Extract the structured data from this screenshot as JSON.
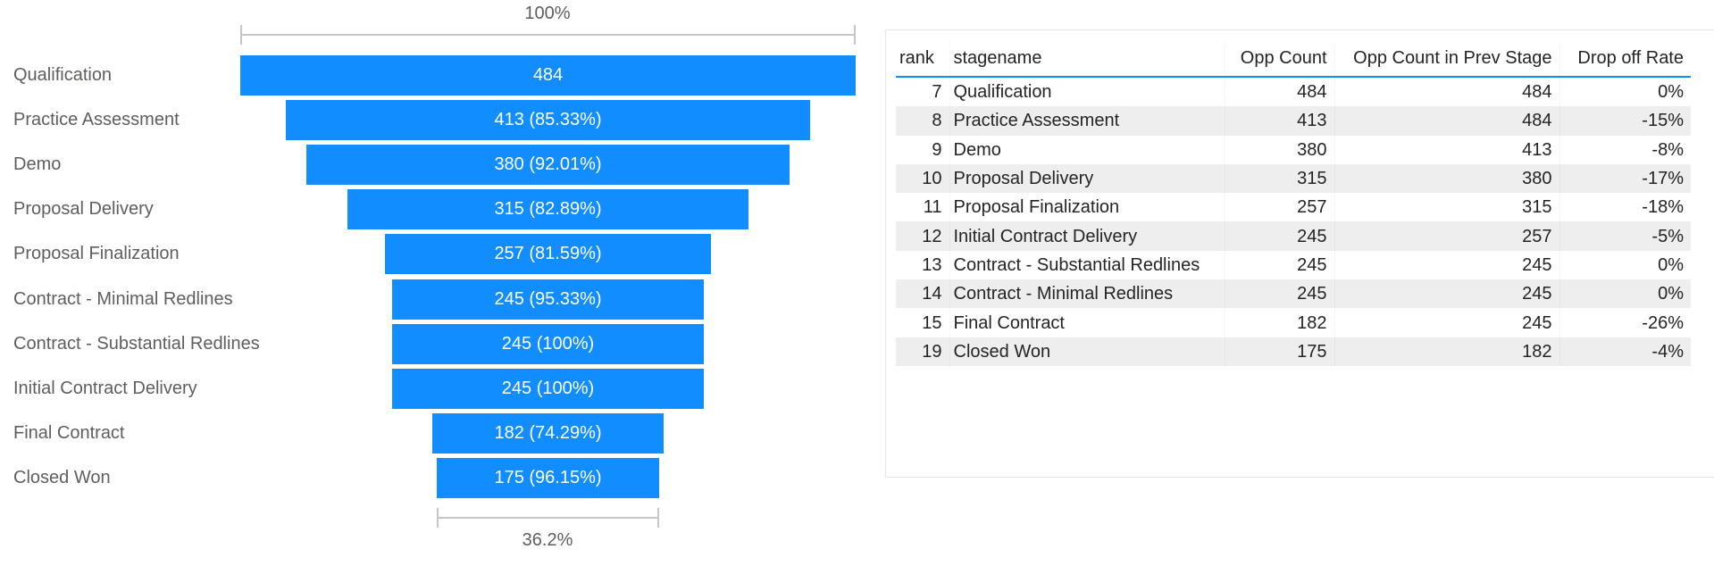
{
  "funnel": {
    "top_axis_label": "100%",
    "bottom_axis_label": "36.2%",
    "bar_color": "#118DFF",
    "stages": [
      {
        "label": "Qualification",
        "value": 484,
        "bar_text": "484"
      },
      {
        "label": "Practice Assessment",
        "value": 413,
        "bar_text": "413 (85.33%)"
      },
      {
        "label": "Demo",
        "value": 380,
        "bar_text": "380 (92.01%)"
      },
      {
        "label": "Proposal Delivery",
        "value": 315,
        "bar_text": "315 (82.89%)"
      },
      {
        "label": "Proposal Finalization",
        "value": 257,
        "bar_text": "257 (81.59%)"
      },
      {
        "label": "Contract - Minimal Redlines",
        "value": 245,
        "bar_text": "245 (95.33%)"
      },
      {
        "label": "Contract - Substantial Redlines",
        "value": 245,
        "bar_text": "245 (100%)"
      },
      {
        "label": "Initial Contract Delivery",
        "value": 245,
        "bar_text": "245 (100%)"
      },
      {
        "label": "Final Contract",
        "value": 182,
        "bar_text": "182 (74.29%)"
      },
      {
        "label": "Closed Won",
        "value": 175,
        "bar_text": "175 (96.15%)"
      }
    ]
  },
  "table": {
    "headers": [
      "rank",
      "stagename",
      "Opp Count",
      "Opp Count in Prev Stage",
      "Drop off Rate"
    ],
    "rows": [
      [
        "7",
        "Qualification",
        "484",
        "484",
        "0%"
      ],
      [
        "8",
        "Practice Assessment",
        "413",
        "484",
        "-15%"
      ],
      [
        "9",
        "Demo",
        "380",
        "413",
        "-8%"
      ],
      [
        "10",
        "Proposal Delivery",
        "315",
        "380",
        "-17%"
      ],
      [
        "11",
        "Proposal Finalization",
        "257",
        "315",
        "-18%"
      ],
      [
        "12",
        "Initial Contract Delivery",
        "245",
        "257",
        "-5%"
      ],
      [
        "13",
        "Contract - Substantial Redlines",
        "245",
        "245",
        "0%"
      ],
      [
        "14",
        "Contract - Minimal Redlines",
        "245",
        "245",
        "0%"
      ],
      [
        "15",
        "Final Contract",
        "182",
        "245",
        "-26%"
      ],
      [
        "19",
        "Closed Won",
        "175",
        "182",
        "-4%"
      ]
    ]
  },
  "chart_data": [
    {
      "type": "bar",
      "subtype": "funnel",
      "title": "",
      "categories": [
        "Qualification",
        "Practice Assessment",
        "Demo",
        "Proposal Delivery",
        "Proposal Finalization",
        "Contract - Minimal Redlines",
        "Contract - Substantial Redlines",
        "Initial Contract Delivery",
        "Final Contract",
        "Closed Won"
      ],
      "values": [
        484,
        413,
        380,
        315,
        257,
        245,
        245,
        245,
        182,
        175
      ],
      "pct_of_previous": [
        null,
        85.33,
        92.01,
        82.89,
        81.59,
        95.33,
        100,
        100,
        74.29,
        96.15
      ],
      "annotations": {
        "top": "100%",
        "bottom": "36.2%"
      },
      "xlabel": "",
      "ylabel": ""
    },
    {
      "type": "table",
      "columns": [
        "rank",
        "stagename",
        "Opp Count",
        "Opp Count in Prev Stage",
        "Drop off Rate"
      ],
      "rows": [
        [
          7,
          "Qualification",
          484,
          484,
          "0%"
        ],
        [
          8,
          "Practice Assessment",
          413,
          484,
          "-15%"
        ],
        [
          9,
          "Demo",
          380,
          413,
          "-8%"
        ],
        [
          10,
          "Proposal Delivery",
          315,
          380,
          "-17%"
        ],
        [
          11,
          "Proposal Finalization",
          257,
          315,
          "-18%"
        ],
        [
          12,
          "Initial Contract Delivery",
          245,
          257,
          "-5%"
        ],
        [
          13,
          "Contract - Substantial Redlines",
          245,
          245,
          "0%"
        ],
        [
          14,
          "Contract - Minimal Redlines",
          245,
          245,
          "0%"
        ],
        [
          15,
          "Final Contract",
          182,
          245,
          "-26%"
        ],
        [
          19,
          "Closed Won",
          175,
          182,
          "-4%"
        ]
      ]
    }
  ]
}
